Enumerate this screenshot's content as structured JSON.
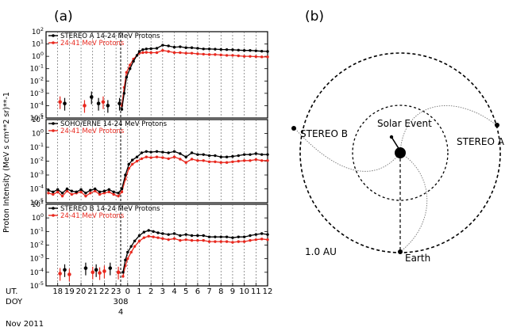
{
  "panel_labels": {
    "a": "(a)",
    "b": "(b)"
  },
  "colors": {
    "series_14_24": "#000000",
    "series_24_41": "#e8281e",
    "axes": "#000000",
    "grid": "#555555"
  },
  "chart_data": [
    {
      "type": "line",
      "panel": "(a)",
      "ylabel": "Proton Intensity (MeV s cm**2 sr)**-1",
      "y_scale": "log",
      "ylim": [
        1e-05,
        100
      ],
      "x_day_labels": [
        "18",
        "19",
        "20",
        "21",
        "22",
        "23",
        "0",
        "1",
        "2",
        "3",
        "4",
        "5",
        "6",
        "7",
        "8",
        "9",
        "10",
        "11",
        "12"
      ],
      "x_row_label_1": "UT.",
      "x_row_label_2": "DOY",
      "doy_value": "308",
      "doy_sub": "4",
      "date_label": "Nov 2011",
      "onset_label_x": 23.4,
      "grid": true,
      "subplots": [
        {
          "name": "STEREO A",
          "y_tick_labels": [
            "10^2",
            "10^1",
            "10^0",
            "10^-1",
            "10^-2",
            "10^-3",
            "10^-4",
            "10^-5"
          ],
          "series": [
            {
              "name": "STEREO A 14-24 MeV Protons",
              "color": "#000000",
              "x": [
                23.5,
                23.7,
                23.9,
                24.2,
                24.5,
                24.8,
                25.0,
                25.3,
                25.6,
                26.0,
                26.5,
                27.0,
                27.5,
                28.0,
                28.5,
                29.0,
                29.5,
                30.0,
                30.5,
                31.0,
                31.5,
                32.0,
                32.5,
                33.0,
                33.5,
                34.0,
                34.5,
                35.0,
                35.5,
                36.0
              ],
              "y": [
                5e-05,
                0.001,
                0.02,
                0.1,
                0.4,
                1.2,
                2.5,
                3.5,
                4.0,
                4.2,
                4.5,
                8.0,
                7.0,
                5.5,
                6.0,
                5.0,
                5.0,
                4.5,
                4.0,
                4.0,
                3.8,
                3.6,
                3.5,
                3.4,
                3.2,
                3.0,
                3.0,
                2.8,
                2.6,
                2.5
              ]
            },
            {
              "name": "24-41 MeV Protons",
              "color": "#e8281e",
              "x": [
                23.5,
                23.7,
                23.9,
                24.2,
                24.5,
                24.8,
                25.0,
                25.3,
                25.6,
                26.0,
                26.5,
                27.0,
                27.5,
                28.0,
                28.5,
                29.0,
                29.5,
                30.0,
                30.5,
                31.0,
                31.5,
                32.0,
                32.5,
                33.0,
                33.5,
                34.0,
                34.5,
                35.0,
                35.5,
                36.0
              ],
              "y": [
                0.0001,
                0.003,
                0.05,
                0.2,
                0.6,
                1.2,
                1.8,
                2.0,
                2.1,
                2.0,
                2.0,
                3.0,
                2.5,
                2.0,
                2.0,
                1.8,
                1.8,
                1.6,
                1.5,
                1.4,
                1.4,
                1.3,
                1.2,
                1.2,
                1.1,
                1.0,
                1.0,
                0.95,
                0.9,
                0.9
              ]
            }
          ],
          "precursor_points": [
            {
              "x": 18.2,
              "y": 0.0002,
              "color": "#e8281e"
            },
            {
              "x": 18.6,
              "y": 0.00015,
              "color": "#000000"
            },
            {
              "x": 20.3,
              "y": 0.0001,
              "color": "#e8281e"
            },
            {
              "x": 20.9,
              "y": 0.0005,
              "color": "#000000"
            },
            {
              "x": 21.5,
              "y": 0.00015,
              "color": "#000000"
            },
            {
              "x": 21.9,
              "y": 0.0002,
              "color": "#e8281e"
            },
            {
              "x": 22.3,
              "y": 0.0001,
              "color": "#000000"
            },
            {
              "x": 23.3,
              "y": 0.00015,
              "color": "#000000"
            }
          ]
        },
        {
          "name": "SOHO/ERNE",
          "y_tick_labels": [
            "10^1",
            "10^0",
            "10^-1",
            "10^-2",
            "10^-3",
            "10^-4",
            "10^-5"
          ],
          "series": [
            {
              "name": "SOHO/ERNE 14-24 MeV Protons",
              "color": "#000000",
              "x": [
                17.2,
                17.6,
                18.0,
                18.4,
                18.8,
                19.2,
                19.6,
                20.0,
                20.4,
                20.8,
                21.2,
                21.6,
                22.0,
                22.4,
                22.8,
                23.2,
                23.5,
                23.8,
                24.1,
                24.4,
                24.8,
                25.2,
                25.6,
                26.0,
                26.5,
                27.0,
                27.5,
                28.0,
                28.5,
                29.0,
                29.5,
                30.0,
                30.5,
                31.0,
                31.5,
                32.0,
                32.5,
                33.0,
                33.5,
                34.0,
                34.5,
                35.0,
                35.5,
                36.0
              ],
              "y": [
                8e-05,
                6e-05,
                9e-05,
                5e-05,
                0.0001,
                7e-05,
                6e-05,
                9e-05,
                5e-05,
                8e-05,
                0.0001,
                6e-05,
                7e-05,
                9e-05,
                6e-05,
                5e-05,
                0.0001,
                0.001,
                0.006,
                0.012,
                0.02,
                0.04,
                0.05,
                0.045,
                0.05,
                0.045,
                0.04,
                0.05,
                0.035,
                0.02,
                0.04,
                0.03,
                0.03,
                0.025,
                0.025,
                0.02,
                0.02,
                0.022,
                0.025,
                0.03,
                0.03,
                0.035,
                0.03,
                0.03
              ]
            },
            {
              "name": "24-41 MeV Protons",
              "color": "#e8281e",
              "x": [
                17.2,
                17.6,
                18.0,
                18.4,
                18.8,
                19.2,
                19.6,
                20.0,
                20.4,
                20.8,
                21.2,
                21.6,
                22.0,
                22.4,
                22.8,
                23.2,
                23.5,
                23.8,
                24.1,
                24.4,
                24.8,
                25.2,
                25.6,
                26.0,
                26.5,
                27.0,
                27.5,
                28.0,
                28.5,
                29.0,
                29.5,
                30.0,
                30.5,
                31.0,
                31.5,
                32.0,
                32.5,
                33.0,
                33.5,
                34.0,
                34.5,
                35.0,
                35.5,
                36.0
              ],
              "y": [
                5e-05,
                4e-05,
                6e-05,
                3e-05,
                7e-05,
                4e-05,
                5e-05,
                6e-05,
                3e-05,
                5e-05,
                7e-05,
                4e-05,
                5e-05,
                6e-05,
                4e-05,
                3e-05,
                6e-05,
                0.0005,
                0.003,
                0.006,
                0.01,
                0.015,
                0.02,
                0.018,
                0.02,
                0.018,
                0.015,
                0.02,
                0.014,
                0.008,
                0.014,
                0.011,
                0.011,
                0.009,
                0.009,
                0.008,
                0.008,
                0.009,
                0.01,
                0.011,
                0.011,
                0.013,
                0.011,
                0.011
              ]
            }
          ]
        },
        {
          "name": "STEREO B",
          "y_tick_labels": [
            "10^1",
            "10^0",
            "10^-1",
            "10^-2",
            "10^-3",
            "10^-4",
            "10^-5"
          ],
          "series": [
            {
              "name": "STEREO B 14-24 MeV Protons",
              "color": "#000000",
              "x": [
                23.6,
                23.8,
                24.0,
                24.3,
                24.6,
                25.0,
                25.4,
                25.8,
                26.2,
                26.6,
                27.0,
                27.5,
                28.0,
                28.5,
                29.0,
                29.5,
                30.0,
                30.5,
                31.0,
                31.5,
                32.0,
                32.5,
                33.0,
                33.5,
                34.0,
                34.5,
                35.0,
                35.5,
                36.0
              ],
              "y": [
                0.0001,
                0.0008,
                0.003,
                0.008,
                0.02,
                0.05,
                0.09,
                0.12,
                0.1,
                0.08,
                0.07,
                0.06,
                0.07,
                0.05,
                0.06,
                0.05,
                0.05,
                0.05,
                0.04,
                0.04,
                0.04,
                0.04,
                0.035,
                0.04,
                0.04,
                0.05,
                0.06,
                0.07,
                0.06
              ]
            },
            {
              "name": "24-41 MeV Protons",
              "color": "#e8281e",
              "x": [
                23.6,
                23.8,
                24.0,
                24.3,
                24.6,
                25.0,
                25.4,
                25.8,
                26.2,
                26.6,
                27.0,
                27.5,
                28.0,
                28.5,
                29.0,
                29.5,
                30.0,
                30.5,
                31.0,
                31.5,
                32.0,
                32.5,
                33.0,
                33.5,
                34.0,
                34.5,
                35.0,
                35.5,
                36.0
              ],
              "y": [
                5e-05,
                0.0003,
                0.001,
                0.003,
                0.008,
                0.02,
                0.035,
                0.045,
                0.04,
                0.035,
                0.03,
                0.025,
                0.03,
                0.022,
                0.025,
                0.022,
                0.022,
                0.022,
                0.018,
                0.018,
                0.018,
                0.018,
                0.016,
                0.018,
                0.018,
                0.022,
                0.025,
                0.028,
                0.025
              ]
            }
          ],
          "precursor_points": [
            {
              "x": 18.2,
              "y": 8e-05,
              "color": "#e8281e"
            },
            {
              "x": 18.6,
              "y": 0.00015,
              "color": "#000000"
            },
            {
              "x": 19.0,
              "y": 7e-05,
              "color": "#e8281e"
            },
            {
              "x": 20.4,
              "y": 0.0002,
              "color": "#000000"
            },
            {
              "x": 21.0,
              "y": 0.0001,
              "color": "#e8281e"
            },
            {
              "x": 21.3,
              "y": 0.00015,
              "color": "#000000"
            },
            {
              "x": 21.6,
              "y": 9e-05,
              "color": "#e8281e"
            },
            {
              "x": 22.0,
              "y": 0.00012,
              "color": "#e8281e"
            },
            {
              "x": 22.5,
              "y": 0.0002,
              "color": "#000000"
            },
            {
              "x": 23.2,
              "y": 0.0001,
              "color": "#e8281e"
            }
          ]
        }
      ]
    }
  ],
  "orbit_diagram": {
    "panel": "(b)",
    "labels": {
      "stereo_b": "STEREO B",
      "stereo_a": "STEREO A",
      "solar_event": "Solar Event",
      "earth": "Earth",
      "distance": "1.0 AU"
    }
  }
}
